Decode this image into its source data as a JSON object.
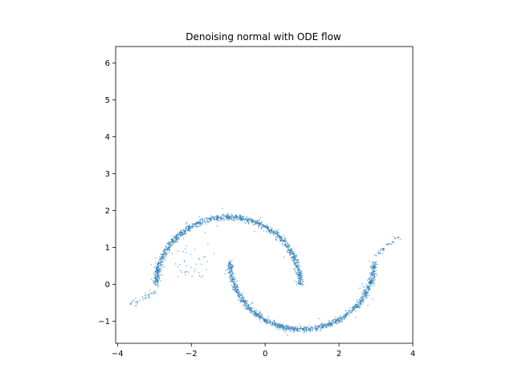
{
  "chart_data": {
    "type": "scatter",
    "title": "Denoising normal with ODE flow",
    "xlabel": "",
    "ylabel": "",
    "xlim": [
      -4.05,
      4.0
    ],
    "ylim": [
      -1.6,
      6.45
    ],
    "xticks": [
      -4,
      -2,
      0,
      2,
      4
    ],
    "yticks": [
      -1,
      0,
      1,
      2,
      3,
      4,
      5,
      6
    ],
    "xtick_labels": [
      "−4",
      "−2",
      "0",
      "2",
      "4"
    ],
    "ytick_labels": [
      "−1",
      "0",
      "1",
      "2",
      "3",
      "4",
      "5",
      "6"
    ],
    "grid": false,
    "marker_color": "#1f77b4",
    "series": [
      {
        "shape": "two interleaving moons",
        "upper_moon": {
          "center": [
            0.0,
            0.0
          ],
          "radius": 1.82,
          "angle_range_deg": [
            0,
            180
          ],
          "offset": [
            -1.0,
            0.0
          ]
        },
        "lower_moon": {
          "center": [
            0.0,
            0.0
          ],
          "radius": 1.82,
          "angle_range_deg": [
            180,
            360
          ],
          "offset": [
            1.0,
            0.6
          ]
        },
        "tails": [
          {
            "from": [
              -3.0,
              -0.2
            ],
            "to": [
              -3.7,
              -0.58
            ]
          },
          {
            "from": [
              3.0,
              0.8
            ],
            "to": [
              3.65,
              1.32
            ]
          }
        ],
        "approx_points": 3000
      }
    ]
  }
}
